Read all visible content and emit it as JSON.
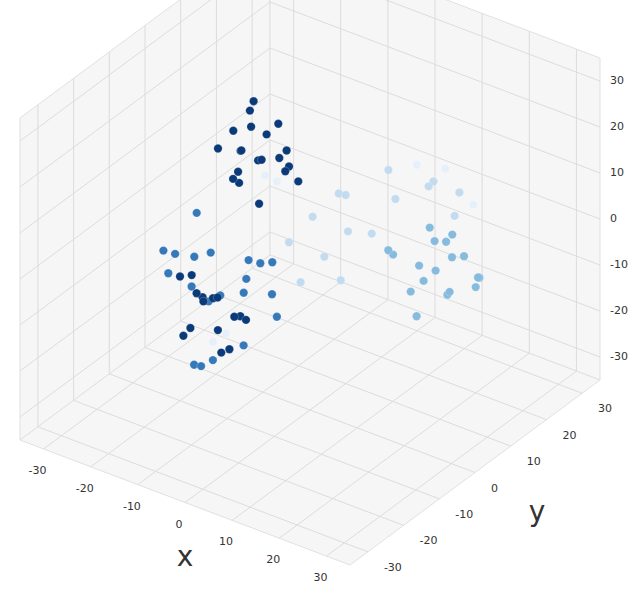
{
  "chart_data": {
    "type": "scatter3d",
    "x_label": "x",
    "y_label": "y",
    "xlim": [
      -35,
      35
    ],
    "ylim": [
      -35,
      35
    ],
    "zlim": [
      -35,
      35
    ],
    "xticks": [
      -30,
      -20,
      -10,
      0,
      10,
      20,
      30
    ],
    "yticks": [
      -30,
      -20,
      -10,
      0,
      10,
      20,
      30
    ],
    "zticks": [
      -30,
      -20,
      -10,
      0,
      10,
      20,
      30
    ],
    "grid": true,
    "marker": "circle",
    "series": [
      {
        "color": "#0b3a78",
        "x": [
          -11,
          -14,
          -8,
          -12,
          -16,
          -9,
          -6,
          -13,
          -18,
          -10,
          -7,
          -15,
          -4,
          -12,
          -9,
          -17,
          -5,
          -11,
          -14,
          -8,
          -13,
          -16,
          -10,
          -18,
          -12,
          -8,
          -15,
          -20,
          -11,
          -14,
          -6,
          -17,
          -9,
          -12,
          -19
        ],
        "y": [
          0,
          2,
          -3,
          -4,
          1,
          3,
          1,
          5,
          -2,
          -6,
          -5,
          4,
          2,
          -1,
          6,
          3,
          -2,
          -7,
          -3,
          4,
          -10,
          -12,
          -8,
          -8,
          -14,
          -12,
          -6,
          -10,
          -5,
          -15,
          -10,
          -13,
          -14,
          -9,
          -5
        ],
        "z": [
          15,
          20,
          18,
          12,
          10,
          22,
          14,
          17,
          16,
          21,
          10,
          24,
          12,
          26,
          11,
          13,
          19,
          15,
          22,
          16,
          -10,
          -5,
          -14,
          -12,
          -8,
          -18,
          -20,
          -8,
          -16,
          -14,
          -12,
          -18,
          -6,
          -22,
          -15
        ]
      },
      {
        "color": "#3679bb",
        "x": [
          -15,
          -20,
          -10,
          -22,
          -8,
          -18,
          -12,
          -16,
          -6,
          -24,
          -14,
          -10,
          -4,
          -2,
          -20,
          -8,
          -13,
          -17,
          -5,
          -21
        ],
        "y": [
          -8,
          -6,
          -4,
          -12,
          -8,
          -14,
          -2,
          -4,
          -6,
          -8,
          -12,
          -14,
          -4,
          -8,
          -2,
          0,
          -16,
          -10,
          -12,
          -4
        ],
        "z": [
          -2,
          -6,
          -4,
          -2,
          -8,
          0,
          -10,
          -14,
          -2,
          -10,
          -24,
          -20,
          -14,
          -6,
          -18,
          -6,
          -4,
          -26,
          -16,
          2
        ]
      },
      {
        "color": "#86bbdd",
        "x": [
          13,
          16,
          10,
          18,
          12,
          8,
          20,
          15,
          11,
          17,
          6,
          22,
          14,
          9,
          19,
          4,
          16,
          12
        ],
        "y": [
          18,
          22,
          15,
          16,
          24,
          20,
          20,
          12,
          19,
          25,
          14,
          18,
          20,
          23,
          14,
          18,
          17,
          14
        ],
        "z": [
          -10,
          -8,
          -14,
          -4,
          -6,
          -12,
          -12,
          -8,
          -2,
          -14,
          -6,
          -8,
          -16,
          -8,
          -10,
          -10,
          -2,
          -18
        ]
      },
      {
        "color": "#c3dbef",
        "x": [
          2,
          6,
          0,
          10,
          -4,
          4,
          8,
          -2,
          12,
          0,
          5,
          -6,
          14,
          3,
          -3
        ],
        "y": [
          8,
          16,
          4,
          20,
          6,
          12,
          24,
          0,
          26,
          10,
          2,
          2,
          22,
          18,
          12
        ],
        "z": [
          0,
          4,
          -4,
          6,
          2,
          -2,
          4,
          -8,
          2,
          6,
          -6,
          -2,
          0,
          8,
          4
        ]
      },
      {
        "color": "#e6f0fa",
        "x": [
          -8,
          -7,
          -10,
          -8,
          6,
          9,
          18
        ],
        "y": [
          -2,
          0,
          -14,
          -13,
          22,
          26,
          22
        ],
        "z": [
          14,
          12,
          -16,
          -14,
          8,
          6,
          4
        ]
      }
    ]
  }
}
